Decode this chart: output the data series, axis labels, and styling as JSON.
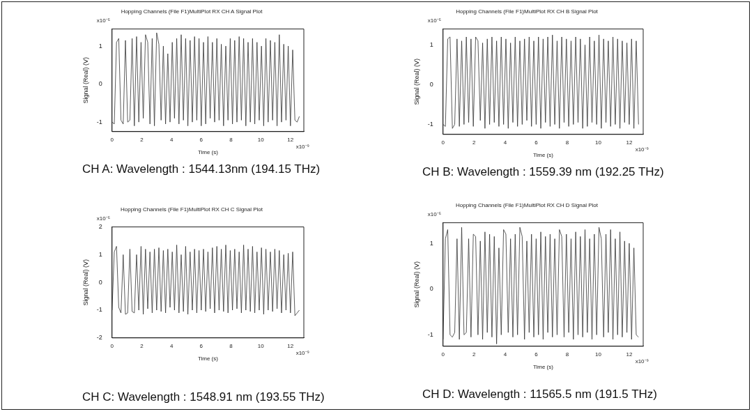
{
  "chart_data": [
    {
      "type": "line",
      "title": "Hopping Channels (File F1)MultiPlot RX CH A Signal Plot",
      "xlabel": "Time (s)",
      "ylabel": "Signal (Real) (V)",
      "x": [
        0,
        0.15,
        0.3,
        0.45,
        0.6,
        0.75,
        0.9,
        1.05,
        1.2,
        1.35,
        1.5,
        1.65,
        1.8,
        1.95,
        2.1,
        2.25,
        2.4,
        2.55,
        2.7,
        2.85,
        3,
        3.15,
        3.3,
        3.45,
        3.6,
        3.75,
        3.9,
        4.05,
        4.2,
        4.35,
        4.5,
        4.65,
        4.8,
        4.95,
        5.1,
        5.25,
        5.4,
        5.55,
        5.7,
        5.85,
        6,
        6.15,
        6.3,
        6.45,
        6.6,
        6.75,
        6.9,
        7.05,
        7.2,
        7.35,
        7.5,
        7.65,
        7.8,
        7.95,
        8.1,
        8.25,
        8.4,
        8.55,
        8.7,
        8.85,
        9,
        9.15,
        9.3,
        9.45,
        9.6,
        9.75,
        9.9,
        10.05,
        10.2,
        10.35,
        10.5,
        10.65,
        10.8,
        10.95,
        11.1,
        11.25,
        11.4,
        11.55,
        11.7,
        11.85,
        12,
        12.15,
        12.3,
        12.45,
        12.6
      ],
      "series": [
        {
          "color": "#333333",
          "values": [
            -1,
            -1.05,
            1.1,
            1.2,
            -0.95,
            -1.05,
            1.15,
            -1,
            -0.95,
            1.2,
            -1.1,
            1.25,
            -1,
            1.1,
            -0.9,
            1.3,
            1.1,
            -1.05,
            1.2,
            -1.1,
            1.35,
            1.05,
            -0.95,
            1.0,
            -1.05,
            0.8,
            -1,
            1.1,
            -0.9,
            1.2,
            -1.05,
            1.3,
            -0.95,
            1.2,
            -1.1,
            1.15,
            -1,
            1.25,
            -0.95,
            1.2,
            -1.1,
            1.1,
            -1.05,
            1.25,
            -0.9,
            1.1,
            -1,
            1.2,
            -0.95,
            1.05,
            -1.1,
            1.0,
            -0.95,
            1.2,
            -1.05,
            1.15,
            -1.0,
            1.25,
            -0.95,
            1.2,
            -1.1,
            1.1,
            -1.0,
            1.2,
            -1.05,
            1.1,
            -0.95,
            1.0,
            -1.1,
            1.2,
            -1.0,
            1.15,
            -0.95,
            1.1,
            -1.1,
            1.3,
            -1.0,
            1.05,
            -0.95,
            1.0,
            -1.1,
            0.9,
            -0.95,
            -1.0,
            -0.85
          ]
        }
      ],
      "xlim": [
        0,
        12.9
      ],
      "xticks": [
        0,
        2,
        4,
        6,
        8,
        10,
        12
      ],
      "ylim": [
        -1.25,
        1.45
      ],
      "yticks": [
        -1,
        0,
        1
      ],
      "annotations": [
        "x10⁻⁵",
        "x10⁻⁹",
        "CH A: Wavelength : 1544.13nm (194.15 THz)"
      ]
    },
    {
      "type": "line",
      "title": "Hopping Channels (File F1)MultiPlot RX CH B Signal Plot",
      "xlabel": "Time (s)",
      "ylabel": "Signal (Real) (V)",
      "x": [
        0,
        0.15,
        0.3,
        0.45,
        0.6,
        0.75,
        0.9,
        1.05,
        1.2,
        1.35,
        1.5,
        1.65,
        1.8,
        1.95,
        2.1,
        2.25,
        2.4,
        2.55,
        2.7,
        2.85,
        3,
        3.15,
        3.3,
        3.45,
        3.6,
        3.75,
        3.9,
        4.05,
        4.2,
        4.35,
        4.5,
        4.65,
        4.8,
        4.95,
        5.1,
        5.25,
        5.4,
        5.55,
        5.7,
        5.85,
        6,
        6.15,
        6.3,
        6.45,
        6.6,
        6.75,
        6.9,
        7.05,
        7.2,
        7.35,
        7.5,
        7.65,
        7.8,
        7.95,
        8.1,
        8.25,
        8.4,
        8.55,
        8.7,
        8.85,
        9,
        9.15,
        9.3,
        9.45,
        9.6,
        9.75,
        9.9,
        10.05,
        10.2,
        10.35,
        10.5,
        10.65,
        10.8,
        10.95,
        11.1,
        11.25,
        11.4,
        11.55,
        11.7,
        11.85,
        12,
        12.15,
        12.3,
        12.45,
        12.6
      ],
      "series": [
        {
          "color": "#333333",
          "values": [
            -1.0,
            -1.05,
            1.15,
            1.2,
            -1.1,
            -1.0,
            1.15,
            -1.05,
            1.1,
            -1.0,
            1.2,
            -0.95,
            1.15,
            -1.05,
            1.2,
            1.1,
            -0.9,
            1.05,
            -1.1,
            1.15,
            -1.0,
            1.2,
            -0.95,
            1.1,
            -1.05,
            1.2,
            -1.0,
            1.15,
            -1.1,
            1.05,
            -0.95,
            1.2,
            -1.05,
            1.1,
            -1.0,
            1.15,
            -0.9,
            1.2,
            -1.05,
            1.1,
            -1.0,
            1.2,
            -1.1,
            1.15,
            -0.95,
            1.2,
            -1.05,
            1.25,
            -1.0,
            1.1,
            -1.1,
            1.2,
            -0.95,
            1.15,
            -1.05,
            1.1,
            -1.0,
            1.2,
            -0.95,
            1.15,
            -1.1,
            1.0,
            -1.05,
            1.2,
            -0.95,
            1.1,
            -1.0,
            1.25,
            -1.1,
            1.15,
            -0.95,
            1.1,
            -1.05,
            1.2,
            -1.0,
            1.15,
            -1.1,
            1.1,
            -0.95,
            1.05,
            -1.0,
            1.15,
            -1.1,
            1.1,
            -1.0
          ]
        }
      ],
      "xlim": [
        0,
        12.9
      ],
      "xticks": [
        0,
        2,
        4,
        6,
        8,
        10,
        12
      ],
      "ylim": [
        -1.25,
        1.4
      ],
      "yticks": [
        -1,
        0,
        1
      ],
      "annotations": [
        "x10⁻⁵",
        "x10⁻⁹",
        "CH B: Wavelength : 1559.39 nm (192.25 THz)"
      ]
    },
    {
      "type": "line",
      "title": "Hopping Channels (File F1)MultiPlot RX CH C Signal Plot",
      "xlabel": "Time (s)",
      "ylabel": "Signal (Real) (V)",
      "x": [
        0,
        0.15,
        0.3,
        0.45,
        0.6,
        0.75,
        0.9,
        1.05,
        1.2,
        1.35,
        1.5,
        1.65,
        1.8,
        1.95,
        2.1,
        2.25,
        2.4,
        2.55,
        2.7,
        2.85,
        3,
        3.15,
        3.3,
        3.45,
        3.6,
        3.75,
        3.9,
        4.05,
        4.2,
        4.35,
        4.5,
        4.65,
        4.8,
        4.95,
        5.1,
        5.25,
        5.4,
        5.55,
        5.7,
        5.85,
        6,
        6.15,
        6.3,
        6.45,
        6.6,
        6.75,
        6.9,
        7.05,
        7.2,
        7.35,
        7.5,
        7.65,
        7.8,
        7.95,
        8.1,
        8.25,
        8.4,
        8.55,
        8.7,
        8.85,
        9,
        9.15,
        9.3,
        9.45,
        9.6,
        9.75,
        9.9,
        10.05,
        10.2,
        10.35,
        10.5,
        10.65,
        10.8,
        10.95,
        11.1,
        11.25,
        11.4,
        11.55,
        11.7,
        11.85,
        12,
        12.15,
        12.3,
        12.45,
        12.6
      ],
      "series": [
        {
          "color": "#333333",
          "values": [
            -1.0,
            1.1,
            1.3,
            -0.9,
            -1.1,
            1.0,
            -1.15,
            -1.1,
            1.2,
            -1.05,
            -1.1,
            1.0,
            -1.0,
            1.3,
            -1.15,
            1.2,
            -0.95,
            1.1,
            -1.1,
            1.2,
            -1.0,
            1.25,
            -1.05,
            1.15,
            -1.1,
            1.2,
            -0.9,
            1.1,
            -1.0,
            1.35,
            -1.1,
            1.0,
            -1.05,
            1.3,
            -1.15,
            1.1,
            -1.0,
            1.2,
            -1.1,
            1.15,
            -1.0,
            1.2,
            -1.05,
            1.1,
            -0.95,
            1.25,
            -1.1,
            1.3,
            -1.0,
            1.2,
            -1.05,
            1.35,
            -1.1,
            1.15,
            -1.0,
            1.2,
            -0.95,
            1.1,
            -1.1,
            1.35,
            -1.0,
            1.2,
            -1.05,
            1.3,
            -1.1,
            1.1,
            -1.0,
            1.25,
            -1.15,
            1.2,
            -1.0,
            1.1,
            -1.05,
            1.2,
            -0.95,
            1.15,
            -1.1,
            1.0,
            -1.0,
            1.05,
            -1.1,
            1.1,
            -1.2,
            -1.1,
            -1.0
          ]
        }
      ],
      "xlim": [
        0,
        12.9
      ],
      "xticks": [
        0,
        2,
        4,
        6,
        8,
        10,
        12
      ],
      "ylim": [
        -2,
        2
      ],
      "yticks": [
        -2,
        -1,
        0,
        1,
        2
      ],
      "annotations": [
        "x10⁻⁵",
        "x10⁻⁹",
        "CH C: Wavelength : 1548.91 nm (193.55 THz)"
      ]
    },
    {
      "type": "line",
      "title": "Hopping Channels (File F1)MultiPlot RX CH D Signal Plot",
      "xlabel": "Time (s)",
      "ylabel": "Signal (Real) (V)",
      "x": [
        0,
        0.15,
        0.3,
        0.45,
        0.6,
        0.75,
        0.9,
        1.05,
        1.2,
        1.35,
        1.5,
        1.65,
        1.8,
        1.95,
        2.1,
        2.25,
        2.4,
        2.55,
        2.7,
        2.85,
        3,
        3.15,
        3.3,
        3.45,
        3.6,
        3.75,
        3.9,
        4.05,
        4.2,
        4.35,
        4.5,
        4.65,
        4.8,
        4.95,
        5.1,
        5.25,
        5.4,
        5.55,
        5.7,
        5.85,
        6,
        6.15,
        6.3,
        6.45,
        6.6,
        6.75,
        6.9,
        7.05,
        7.2,
        7.35,
        7.5,
        7.65,
        7.8,
        7.95,
        8.1,
        8.25,
        8.4,
        8.55,
        8.7,
        8.85,
        9,
        9.15,
        9.3,
        9.45,
        9.6,
        9.75,
        9.9,
        10.05,
        10.2,
        10.35,
        10.5,
        10.65,
        10.8,
        10.95,
        11.1,
        11.25,
        11.4,
        11.55,
        11.7,
        11.85,
        12,
        12.15,
        12.3,
        12.45,
        12.6
      ],
      "series": [
        {
          "color": "#333333",
          "values": [
            -1.1,
            1.1,
            1.3,
            -1.0,
            -1.05,
            -0.95,
            1.1,
            -1.1,
            1.35,
            -1.0,
            -0.95,
            1.1,
            -1.05,
            1.2,
            1.15,
            -1.0,
            1.05,
            -1.1,
            1.25,
            -0.95,
            1.2,
            -1.05,
            1.15,
            -1.2,
            0.9,
            -1.0,
            1.3,
            1.2,
            -0.95,
            1.1,
            -1.05,
            1.2,
            -1.0,
            1.35,
            1.15,
            -1.1,
            1.05,
            -0.95,
            1.2,
            -1.05,
            1.1,
            -1.0,
            1.25,
            -1.1,
            1.15,
            -0.95,
            1.2,
            -1.05,
            1.1,
            -1.0,
            1.3,
            1.15,
            -1.05,
            1.2,
            -0.95,
            1.1,
            -1.1,
            1.25,
            -1.0,
            1.15,
            -1.05,
            1.3,
            -0.95,
            1.1,
            -1.1,
            1.2,
            -1.0,
            1.35,
            1.1,
            -1.05,
            1.2,
            -0.95,
            1.3,
            -1.1,
            1.1,
            -1.0,
            1.25,
            -1.05,
            1.05,
            -0.95,
            1.0,
            -1.1,
            0.9,
            -1.0,
            -1.05
          ]
        }
      ],
      "xlim": [
        0,
        12.9
      ],
      "xticks": [
        0,
        2,
        4,
        6,
        8,
        10,
        12
      ],
      "ylim": [
        -1.25,
        1.45
      ],
      "yticks": [
        -1,
        0,
        1
      ],
      "annotations": [
        "x10⁻⁵",
        "x10⁻⁹",
        "CH D: Wavelength : 11565.5 nm (191.5 THz)"
      ]
    }
  ]
}
